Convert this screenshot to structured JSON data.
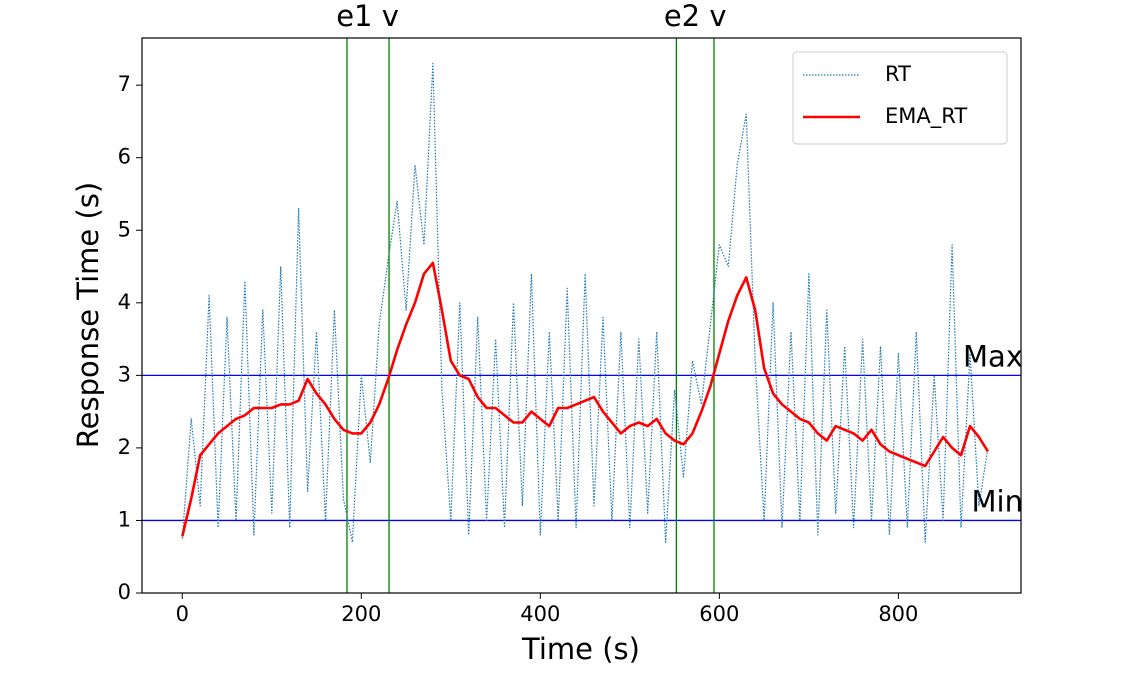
{
  "chart_data": {
    "type": "line",
    "xlabel": "Time (s)",
    "ylabel": "Response Time (s)",
    "x": [
      0,
      10,
      20,
      30,
      40,
      50,
      60,
      70,
      80,
      90,
      100,
      110,
      120,
      130,
      140,
      150,
      160,
      170,
      180,
      190,
      200,
      210,
      220,
      230,
      240,
      250,
      260,
      270,
      280,
      290,
      300,
      310,
      320,
      330,
      340,
      350,
      360,
      370,
      380,
      390,
      400,
      410,
      420,
      430,
      440,
      450,
      460,
      470,
      480,
      490,
      500,
      510,
      520,
      530,
      540,
      550,
      560,
      570,
      580,
      590,
      600,
      610,
      620,
      630,
      640,
      650,
      660,
      670,
      680,
      690,
      700,
      710,
      720,
      730,
      740,
      750,
      760,
      770,
      780,
      790,
      800,
      810,
      820,
      830,
      840,
      850,
      860,
      870,
      880,
      890,
      900
    ],
    "series": [
      {
        "name": "RT",
        "color": "#1f77b4",
        "style": "dotted",
        "values": [
          0.75,
          2.4,
          1.2,
          4.1,
          0.9,
          3.8,
          1.0,
          4.3,
          0.8,
          3.9,
          1.1,
          4.5,
          0.9,
          5.3,
          1.4,
          3.6,
          1.0,
          3.9,
          1.3,
          0.7,
          3.0,
          1.8,
          3.7,
          4.6,
          5.4,
          3.9,
          5.9,
          4.8,
          7.3,
          2.8,
          1.0,
          4.0,
          0.8,
          3.8,
          1.0,
          3.5,
          0.9,
          4.0,
          1.2,
          4.4,
          0.8,
          3.6,
          1.0,
          4.2,
          0.9,
          4.4,
          1.2,
          3.8,
          1.0,
          3.6,
          0.9,
          3.5,
          1.1,
          3.6,
          0.7,
          2.8,
          1.6,
          3.2,
          2.6,
          3.7,
          4.8,
          4.5,
          5.9,
          6.6,
          3.2,
          1.0,
          4.0,
          0.9,
          3.6,
          1.0,
          4.4,
          0.8,
          3.9,
          1.1,
          3.4,
          0.9,
          3.5,
          1.0,
          3.4,
          0.8,
          3.3,
          0.9,
          3.6,
          0.7,
          3.0,
          1.0,
          4.8,
          0.9,
          3.3,
          1.2,
          2.0
        ]
      },
      {
        "name": "EMA_RT",
        "color": "#ff0000",
        "style": "solid",
        "values": [
          0.78,
          1.3,
          1.9,
          2.05,
          2.2,
          2.3,
          2.4,
          2.45,
          2.55,
          2.55,
          2.55,
          2.6,
          2.6,
          2.65,
          2.95,
          2.75,
          2.6,
          2.4,
          2.25,
          2.2,
          2.2,
          2.35,
          2.6,
          2.95,
          3.35,
          3.7,
          4.0,
          4.4,
          4.55,
          3.9,
          3.2,
          3.0,
          2.95,
          2.7,
          2.55,
          2.55,
          2.45,
          2.35,
          2.35,
          2.5,
          2.4,
          2.3,
          2.55,
          2.55,
          2.6,
          2.65,
          2.7,
          2.5,
          2.35,
          2.2,
          2.3,
          2.35,
          2.3,
          2.4,
          2.2,
          2.1,
          2.05,
          2.2,
          2.5,
          2.85,
          3.3,
          3.75,
          4.1,
          4.35,
          3.9,
          3.1,
          2.75,
          2.6,
          2.5,
          2.4,
          2.35,
          2.2,
          2.1,
          2.3,
          2.25,
          2.2,
          2.1,
          2.25,
          2.05,
          1.95,
          1.9,
          1.85,
          1.8,
          1.75,
          1.95,
          2.15,
          2.0,
          1.9,
          2.3,
          2.15,
          1.95
        ]
      }
    ],
    "xlim": [
      -45,
      937
    ],
    "ylim": [
      0,
      7.65
    ],
    "xticks": [
      0,
      200,
      400,
      600,
      800
    ],
    "yticks": [
      0,
      1,
      2,
      3,
      4,
      5,
      6,
      7
    ],
    "vlines": [
      184,
      231,
      552,
      594
    ],
    "vline_color": "#008000",
    "annotations": [
      {
        "text": "e1 v",
        "x": 207
      },
      {
        "text": "e2 v",
        "x": 573
      }
    ],
    "hlines": [
      {
        "y": 3,
        "label": "Max"
      },
      {
        "y": 1,
        "label": "Min"
      }
    ],
    "hline_color": "#0000ff",
    "legend": "upper right"
  }
}
